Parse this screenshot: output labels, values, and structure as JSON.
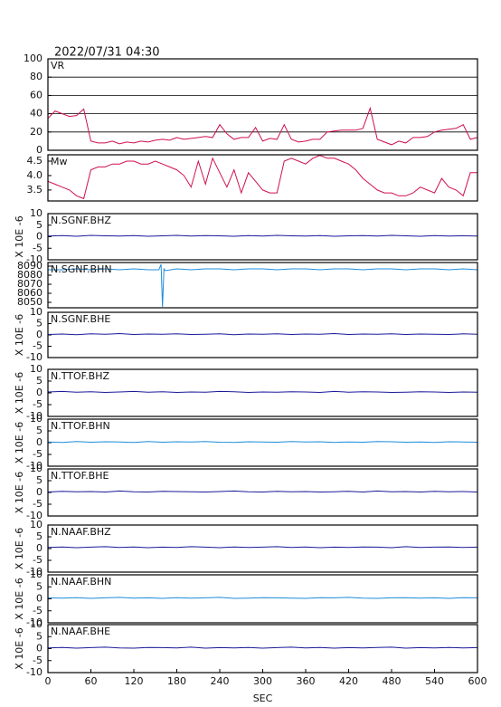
{
  "chart_data": [
    {
      "type": "line",
      "title": "2022/07/31 04:30",
      "label": "VR",
      "color": "#d0104c",
      "grid": true,
      "xlim": [
        0,
        600
      ],
      "ylim": [
        0,
        100
      ],
      "yticks": [
        0,
        20,
        40,
        60,
        80,
        100
      ],
      "x": [
        0,
        10,
        20,
        30,
        40,
        50,
        60,
        70,
        80,
        90,
        100,
        110,
        120,
        130,
        140,
        150,
        160,
        170,
        180,
        190,
        200,
        210,
        220,
        230,
        240,
        250,
        260,
        270,
        280,
        290,
        300,
        310,
        320,
        330,
        340,
        350,
        360,
        370,
        380,
        390,
        400,
        410,
        420,
        430,
        440,
        450,
        460,
        470,
        480,
        490,
        500,
        510,
        520,
        530,
        540,
        550,
        560,
        570,
        580,
        590,
        600
      ],
      "values": [
        35,
        43,
        40,
        37,
        38,
        45,
        10,
        8,
        8,
        10,
        7,
        9,
        8,
        10,
        9,
        11,
        12,
        11,
        14,
        12,
        13,
        14,
        15,
        14,
        28,
        18,
        12,
        14,
        14,
        25,
        10,
        13,
        12,
        28,
        12,
        9,
        10,
        12,
        12,
        20,
        21,
        22,
        22,
        22,
        24,
        46,
        12,
        9,
        6,
        10,
        8,
        14,
        14,
        15,
        20,
        22,
        23,
        24,
        28,
        12,
        14
      ]
    },
    {
      "type": "line",
      "label": "Mw",
      "color": "#d0104c",
      "xlim": [
        0,
        600
      ],
      "ylim": [
        3.12,
        4.72
      ],
      "yticks": [
        3.5,
        {
          "value": 4,
          "label": "4.0"
        },
        4.5
      ],
      "x": [
        0,
        10,
        20,
        30,
        40,
        50,
        60,
        70,
        80,
        90,
        100,
        110,
        120,
        130,
        140,
        150,
        160,
        170,
        180,
        190,
        200,
        210,
        220,
        230,
        240,
        250,
        260,
        270,
        280,
        290,
        300,
        310,
        320,
        330,
        340,
        350,
        360,
        370,
        380,
        390,
        400,
        410,
        420,
        430,
        440,
        450,
        460,
        470,
        480,
        490,
        500,
        510,
        520,
        530,
        540,
        550,
        560,
        570,
        580,
        590,
        600
      ],
      "values": [
        3.8,
        3.7,
        3.6,
        3.5,
        3.3,
        3.2,
        4.2,
        4.3,
        4.3,
        4.4,
        4.4,
        4.5,
        4.5,
        4.4,
        4.4,
        4.5,
        4.4,
        4.3,
        4.2,
        4.0,
        3.6,
        4.5,
        3.7,
        4.6,
        4.1,
        3.6,
        4.2,
        3.4,
        4.1,
        3.8,
        3.5,
        3.4,
        3.4,
        4.5,
        4.6,
        4.5,
        4.4,
        4.6,
        4.7,
        4.6,
        4.6,
        4.5,
        4.4,
        4.2,
        3.9,
        3.7,
        3.5,
        3.4,
        3.4,
        3.3,
        3.3,
        3.4,
        3.6,
        3.5,
        3.4,
        3.9,
        3.6,
        3.5,
        3.3,
        4.1,
        4.1
      ]
    },
    {
      "type": "line",
      "label": "N.SGNF.BHZ",
      "ylabel": "X 10E -6",
      "color": "#1a1a9a",
      "xlim": [
        0,
        600
      ],
      "ylim": [
        -10,
        10
      ],
      "yticks": [
        -10,
        -5,
        0,
        5,
        10
      ],
      "x": [
        0,
        20,
        40,
        60,
        80,
        100,
        120,
        140,
        160,
        180,
        200,
        220,
        240,
        260,
        280,
        300,
        320,
        340,
        360,
        380,
        400,
        420,
        440,
        460,
        480,
        500,
        520,
        540,
        560,
        580,
        600
      ],
      "values": [
        0.3,
        0.5,
        0.2,
        0.6,
        0.4,
        0.3,
        0.5,
        0.2,
        0.4,
        0.6,
        0.3,
        0.5,
        0.4,
        0.2,
        0.5,
        0.3,
        0.6,
        0.4,
        0.3,
        0.5,
        0.2,
        0.4,
        0.5,
        0.3,
        0.6,
        0.4,
        0.2,
        0.5,
        0.3,
        0.4,
        0.3
      ]
    },
    {
      "type": "line",
      "label": "N.SGNF.BHN",
      "color": "#1e8cdc",
      "xlim": [
        0,
        600
      ],
      "ylim": [
        8044,
        8094
      ],
      "yticks": [
        8050,
        8060,
        8070,
        8080,
        8090
      ],
      "x": [
        0,
        20,
        40,
        60,
        80,
        100,
        120,
        140,
        155,
        158,
        160,
        162,
        164,
        180,
        200,
        220,
        240,
        260,
        280,
        300,
        320,
        340,
        360,
        380,
        400,
        420,
        440,
        460,
        480,
        500,
        520,
        540,
        560,
        580,
        600
      ],
      "values": [
        8086,
        8086,
        8087,
        8086,
        8087,
        8086,
        8087,
        8086,
        8086,
        8092,
        8045,
        8087,
        8085,
        8087,
        8086,
        8087,
        8087,
        8086,
        8087,
        8087,
        8086,
        8087,
        8087,
        8086,
        8087,
        8087,
        8086,
        8087,
        8087,
        8086,
        8087,
        8087,
        8086,
        8087,
        8086
      ]
    },
    {
      "type": "line",
      "label": "N.SGNF.BHE",
      "ylabel": "X 10E -6",
      "color": "#1a1a9a",
      "xlim": [
        0,
        600
      ],
      "ylim": [
        -10,
        10
      ],
      "yticks": [
        -10,
        -5,
        0,
        5,
        10
      ],
      "x": [
        0,
        20,
        40,
        60,
        80,
        100,
        120,
        140,
        160,
        180,
        200,
        220,
        240,
        260,
        280,
        300,
        320,
        340,
        360,
        380,
        400,
        420,
        440,
        460,
        480,
        500,
        520,
        540,
        560,
        580,
        600
      ],
      "values": [
        0.2,
        0.4,
        0.1,
        0.5,
        0.3,
        0.6,
        0.2,
        0.4,
        0.3,
        0.5,
        0.2,
        0.3,
        0.5,
        0.1,
        0.4,
        0.3,
        0.5,
        0.2,
        0.4,
        0.3,
        0.6,
        0.2,
        0.4,
        0.3,
        0.5,
        0.2,
        0.4,
        0.3,
        0.2,
        0.5,
        0.3
      ]
    },
    {
      "type": "line",
      "label": "N.TTOF.BHZ",
      "ylabel": "X 10E -6",
      "color": "#1a1a9a",
      "xlim": [
        0,
        600
      ],
      "ylim": [
        -10,
        10
      ],
      "yticks": [
        -10,
        -5,
        0,
        5,
        10
      ],
      "x": [
        0,
        20,
        40,
        60,
        80,
        100,
        120,
        140,
        160,
        180,
        200,
        220,
        240,
        260,
        280,
        300,
        320,
        340,
        360,
        380,
        400,
        420,
        440,
        460,
        480,
        500,
        520,
        540,
        560,
        580,
        600
      ],
      "values": [
        0.4,
        0.6,
        0.3,
        0.5,
        0.2,
        0.4,
        0.6,
        0.3,
        0.5,
        0.2,
        0.4,
        0.3,
        0.6,
        0.5,
        0.2,
        0.4,
        0.3,
        0.5,
        0.4,
        0.2,
        0.6,
        0.3,
        0.5,
        0.4,
        0.2,
        0.3,
        0.5,
        0.4,
        0.2,
        0.4,
        0.3
      ]
    },
    {
      "type": "line",
      "label": "N.TTOF.BHN",
      "ylabel": "X 10E -6",
      "color": "#1e8cdc",
      "xlim": [
        0,
        600
      ],
      "ylim": [
        -10,
        10
      ],
      "yticks": [
        -10,
        -5,
        0,
        5,
        10
      ],
      "x": [
        0,
        20,
        40,
        60,
        80,
        100,
        120,
        140,
        160,
        180,
        200,
        220,
        240,
        260,
        280,
        300,
        320,
        340,
        360,
        380,
        400,
        420,
        440,
        460,
        480,
        500,
        520,
        540,
        560,
        580,
        600
      ],
      "values": [
        0.3,
        0.1,
        0.5,
        0.2,
        0.4,
        0.3,
        0.1,
        0.5,
        0.2,
        0.4,
        0.3,
        0.5,
        0.2,
        0.1,
        0.4,
        0.3,
        0.2,
        0.5,
        0.3,
        0.4,
        0.1,
        0.3,
        0.2,
        0.5,
        0.4,
        0.2,
        0.3,
        0.1,
        0.4,
        0.3,
        0.2
      ]
    },
    {
      "type": "line",
      "label": "N.TTOF.BHE",
      "ylabel": "X 10E -6",
      "color": "#1a1a9a",
      "xlim": [
        0,
        600
      ],
      "ylim": [
        -10,
        10
      ],
      "yticks": [
        -10,
        -5,
        0,
        5,
        10
      ],
      "x": [
        0,
        20,
        40,
        60,
        80,
        100,
        120,
        140,
        160,
        180,
        200,
        220,
        240,
        260,
        280,
        300,
        320,
        340,
        360,
        380,
        400,
        420,
        440,
        460,
        480,
        500,
        520,
        540,
        560,
        580,
        600
      ],
      "values": [
        0.2,
        0.5,
        0.3,
        0.4,
        0.2,
        0.6,
        0.3,
        0.2,
        0.5,
        0.4,
        0.3,
        0.2,
        0.4,
        0.6,
        0.3,
        0.2,
        0.5,
        0.3,
        0.4,
        0.2,
        0.3,
        0.5,
        0.2,
        0.6,
        0.3,
        0.4,
        0.2,
        0.5,
        0.3,
        0.4,
        0.2
      ]
    },
    {
      "type": "line",
      "label": "N.NAAF.BHZ",
      "ylabel": "X 10E -6",
      "color": "#1a1a9a",
      "xlim": [
        0,
        600
      ],
      "ylim": [
        -10,
        10
      ],
      "yticks": [
        -10,
        -5,
        0,
        5,
        10
      ],
      "x": [
        0,
        20,
        40,
        60,
        80,
        100,
        120,
        140,
        160,
        180,
        200,
        220,
        240,
        260,
        280,
        300,
        320,
        340,
        360,
        380,
        400,
        420,
        440,
        460,
        480,
        500,
        520,
        540,
        560,
        580,
        600
      ],
      "values": [
        0.5,
        0.7,
        0.4,
        0.6,
        0.8,
        0.5,
        0.7,
        0.4,
        0.6,
        0.5,
        0.8,
        0.6,
        0.4,
        0.7,
        0.5,
        0.6,
        0.8,
        0.5,
        0.7,
        0.4,
        0.6,
        0.5,
        0.7,
        0.6,
        0.4,
        0.8,
        0.5,
        0.6,
        0.7,
        0.5,
        0.6
      ]
    },
    {
      "type": "line",
      "label": "N.NAAF.BHN",
      "ylabel": "X 10E -6",
      "color": "#1e8cdc",
      "xlim": [
        0,
        600
      ],
      "ylim": [
        -10,
        10
      ],
      "yticks": [
        -10,
        -5,
        0,
        5,
        10
      ],
      "x": [
        0,
        20,
        40,
        60,
        80,
        100,
        120,
        140,
        160,
        180,
        200,
        220,
        240,
        260,
        280,
        300,
        320,
        340,
        360,
        380,
        400,
        420,
        440,
        460,
        480,
        500,
        520,
        540,
        560,
        580,
        600
      ],
      "values": [
        0.4,
        0.3,
        0.5,
        0.2,
        0.4,
        0.6,
        0.3,
        0.4,
        0.2,
        0.5,
        0.3,
        0.4,
        0.6,
        0.2,
        0.3,
        0.5,
        0.4,
        0.3,
        0.2,
        0.5,
        0.4,
        0.6,
        0.3,
        0.2,
        0.4,
        0.5,
        0.3,
        0.4,
        0.2,
        0.5,
        0.4
      ]
    },
    {
      "type": "line",
      "label": "N.NAAF.BHE",
      "ylabel": "X 10E -6",
      "xlabel": "SEC",
      "color": "#1a1a9a",
      "xlim": [
        0,
        600
      ],
      "ylim": [
        -10,
        10
      ],
      "yticks": [
        -10,
        -5,
        0,
        5,
        10
      ],
      "xticks": [
        0,
        60,
        120,
        180,
        240,
        300,
        360,
        420,
        480,
        540,
        600
      ],
      "x": [
        0,
        20,
        40,
        60,
        80,
        100,
        120,
        140,
        160,
        180,
        200,
        220,
        240,
        260,
        280,
        300,
        320,
        340,
        360,
        380,
        400,
        420,
        440,
        460,
        480,
        500,
        520,
        540,
        560,
        580,
        600
      ],
      "values": [
        0.3,
        0.5,
        0.2,
        0.4,
        0.6,
        0.3,
        0.2,
        0.5,
        0.4,
        0.3,
        0.6,
        0.2,
        0.4,
        0.3,
        0.5,
        0.2,
        0.4,
        0.6,
        0.3,
        0.5,
        0.2,
        0.4,
        0.3,
        0.5,
        0.6,
        0.2,
        0.4,
        0.3,
        0.5,
        0.3,
        0.4
      ]
    }
  ]
}
